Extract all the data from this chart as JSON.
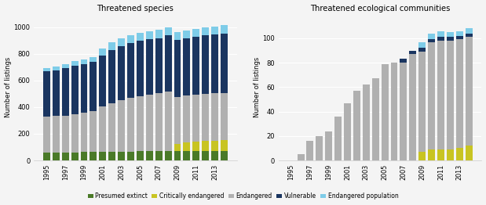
{
  "title1": "Threatened species",
  "title2": "Threatened ecological communities",
  "ylabel": "Number of listings",
  "years": [
    1995,
    1996,
    1997,
    1998,
    1999,
    2000,
    2001,
    2002,
    2003,
    2004,
    2005,
    2006,
    2007,
    2008,
    2009,
    2010,
    2011,
    2012,
    2013,
    2014
  ],
  "species": {
    "presumed_extinct": [
      57,
      58,
      59,
      60,
      62,
      63,
      65,
      65,
      66,
      67,
      68,
      68,
      69,
      68,
      68,
      68,
      68,
      68,
      68,
      68
    ],
    "critically_endangered": [
      0,
      0,
      0,
      0,
      0,
      0,
      0,
      0,
      0,
      0,
      0,
      0,
      0,
      0,
      55,
      68,
      75,
      78,
      80,
      82
    ],
    "endangered": [
      270,
      275,
      278,
      285,
      295,
      305,
      340,
      365,
      385,
      400,
      415,
      425,
      435,
      450,
      355,
      350,
      348,
      352,
      355,
      358
    ],
    "vulnerable": [
      340,
      340,
      355,
      365,
      365,
      370,
      385,
      400,
      405,
      415,
      415,
      415,
      415,
      420,
      425,
      430,
      435,
      440,
      440,
      445
    ],
    "endangered_population": [
      25,
      30,
      30,
      35,
      35,
      40,
      50,
      55,
      60,
      60,
      60,
      60,
      60,
      60,
      60,
      60,
      60,
      60,
      62,
      65
    ]
  },
  "communities": {
    "presumed_extinct": [
      0,
      0,
      0,
      0,
      0,
      0,
      0,
      0,
      0,
      0,
      0,
      0,
      0,
      0,
      0,
      0,
      0,
      0,
      0,
      0
    ],
    "critically_endangered": [
      0,
      0,
      0,
      0,
      0,
      0,
      0,
      0,
      0,
      0,
      0,
      0,
      0,
      0,
      7,
      9,
      9,
      9,
      10,
      12
    ],
    "endangered": [
      0,
      5,
      16,
      20,
      24,
      36,
      47,
      57,
      62,
      67,
      79,
      80,
      80,
      87,
      82,
      88,
      89,
      89,
      89,
      89
    ],
    "vulnerable": [
      0,
      0,
      0,
      0,
      0,
      0,
      0,
      0,
      0,
      0,
      0,
      0,
      3,
      3,
      3,
      2,
      3,
      3,
      3,
      3
    ],
    "endangered_population": [
      0,
      0,
      0,
      0,
      0,
      0,
      0,
      0,
      0,
      0,
      0,
      0,
      0,
      0,
      5,
      5,
      5,
      4,
      4,
      4
    ]
  },
  "colors": {
    "presumed_extinct": "#4a7a28",
    "critically_endangered": "#c8c422",
    "endangered": "#b0b0b0",
    "vulnerable": "#1a3560",
    "endangered_population": "#7ecce8"
  },
  "legend_labels": [
    "Presumed extinct",
    "Critically endangered",
    "Endangered",
    "Vulnerable",
    "Endangered population"
  ],
  "background_color": "#f4f4f4",
  "species_ylim": 1100,
  "communities_ylim": 120
}
